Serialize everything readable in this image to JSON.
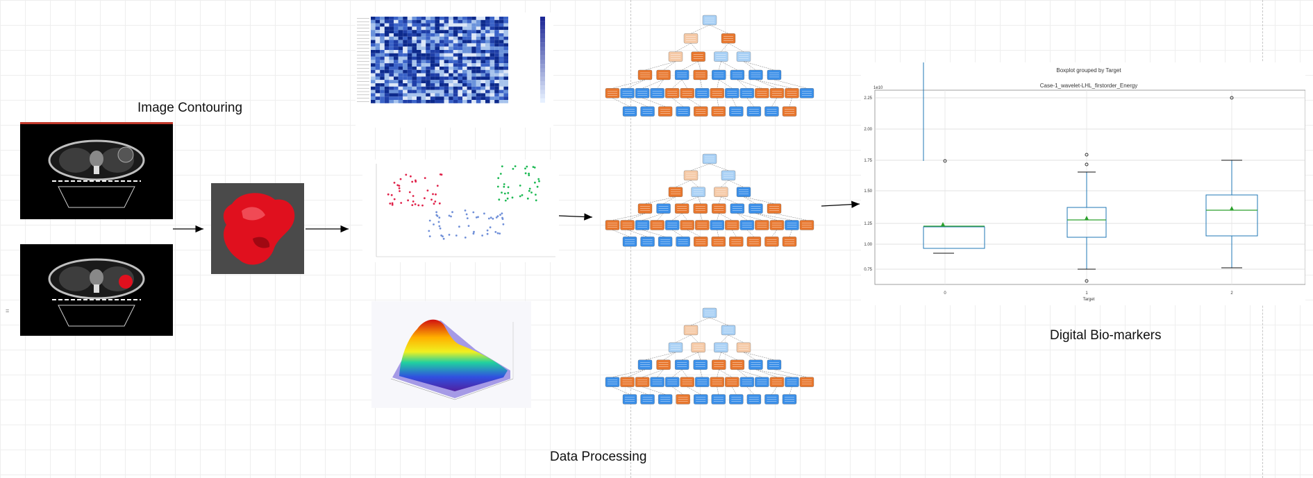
{
  "labels": {
    "image_contouring": "Image Contouring",
    "data_processing": "Data Processing",
    "digital_biomarkers": "Digital Bio-markers"
  },
  "side_mark": "=",
  "boxplot": {
    "suptitle": "Boxplot grouped by Target",
    "title": "Case-1_wavelet-LHL_firstorder_Energy",
    "xlabel": "Target",
    "ymax_label": "1e10",
    "ticks_y": [
      "2.25",
      "2.00",
      "1.75",
      "1.50",
      "1.25",
      "1.00",
      "0.75"
    ],
    "ticks_x": [
      "0",
      "1",
      "2"
    ]
  },
  "colors": {
    "blue_node": "#3b8fe8",
    "orange_node": "#e8772e",
    "light_blue_node": "#a8d0f5",
    "light_orange_node": "#f5c9a6",
    "scatter_red": "#e0224a",
    "scatter_green": "#1db954",
    "scatter_blue": "#6f8fd8",
    "tumor_red": "#e0101e"
  }
}
